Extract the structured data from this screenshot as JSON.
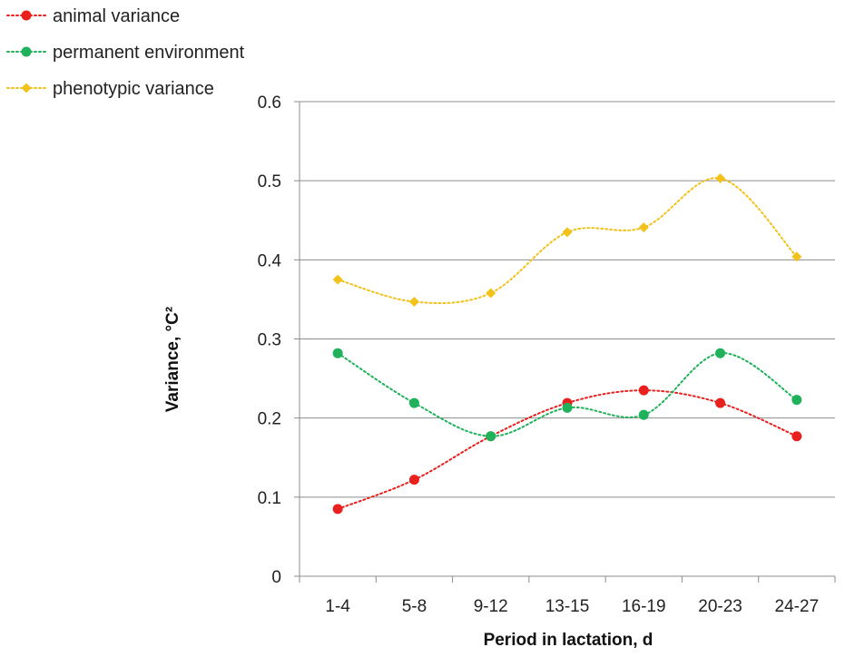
{
  "chart_data": {
    "type": "line",
    "title": "",
    "xlabel": "Period in lactation, d",
    "ylabel": "Variance, °C²",
    "categories": [
      "1-4",
      "5-8",
      "9-12",
      "13-15",
      "16-19",
      "20-23",
      "24-27"
    ],
    "ylim": [
      0,
      0.6
    ],
    "yticks": [
      "0",
      "0.1",
      "0.2",
      "0.3",
      "0.4",
      "0.5",
      "0.6"
    ],
    "grid": true,
    "smooth": true,
    "legend_position": "top-left",
    "series": [
      {
        "name": "animal variance",
        "color": "#e8201e",
        "marker": "circle",
        "line_style": "dotted",
        "values": [
          0.085,
          0.122,
          0.177,
          0.219,
          0.235,
          0.219,
          0.177
        ]
      },
      {
        "name": "permanent environment",
        "color": "#1fb25a",
        "marker": "circle",
        "line_style": "dotted",
        "values": [
          0.282,
          0.219,
          0.177,
          0.213,
          0.204,
          0.282,
          0.223
        ]
      },
      {
        "name": "phenotypic variance",
        "color": "#f2c21b",
        "marker": "diamond",
        "line_style": "dotted",
        "values": [
          0.375,
          0.347,
          0.358,
          0.435,
          0.441,
          0.503,
          0.404
        ]
      }
    ]
  }
}
